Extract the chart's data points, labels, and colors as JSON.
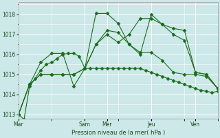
{
  "bg_color": "#cce8e8",
  "grid_color": "#ffffff",
  "line_color": "#1a6e1a",
  "marker_color": "#1a6e1a",
  "xlabel": "Pression niveau de la mer( hPa )",
  "ylim": [
    1012.8,
    1018.6
  ],
  "yticks": [
    1013,
    1014,
    1015,
    1016,
    1017,
    1018
  ],
  "x_day_labels": [
    "Mar",
    "Sam",
    "Mer",
    "Jeu",
    "Ven"
  ],
  "x_day_positions": [
    0,
    48,
    64,
    96,
    128
  ],
  "xlim": [
    0,
    144
  ],
  "vline_positions": [
    0,
    48,
    64,
    96,
    128
  ],
  "series": [
    {
      "x": [
        0,
        4,
        8,
        12,
        16,
        20,
        24,
        28,
        32,
        36,
        40,
        44,
        48,
        52,
        56,
        60,
        64,
        68,
        72,
        76,
        80,
        84,
        88,
        92,
        96,
        100,
        104,
        108,
        112,
        116,
        120,
        124,
        128,
        132,
        136,
        140,
        144
      ],
      "y": [
        1013.0,
        1012.75,
        1014.4,
        1014.8,
        1015.2,
        1015.5,
        1015.6,
        1015.8,
        1016.0,
        1016.05,
        1016.05,
        1015.9,
        1015.3,
        1015.3,
        1015.3,
        1015.3,
        1015.3,
        1015.3,
        1015.3,
        1015.3,
        1015.3,
        1015.3,
        1015.3,
        1015.2,
        1015.1,
        1015.0,
        1014.9,
        1014.8,
        1014.7,
        1014.6,
        1014.5,
        1014.4,
        1014.3,
        1014.2,
        1014.15,
        1014.1,
        1014.15
      ]
    },
    {
      "x": [
        0,
        8,
        16,
        24,
        32,
        40,
        48,
        56,
        64,
        72,
        80,
        88,
        96,
        104,
        112,
        120,
        128,
        136,
        144
      ],
      "y": [
        1013.0,
        1014.5,
        1015.6,
        1016.05,
        1016.05,
        1014.4,
        1015.3,
        1018.05,
        1018.05,
        1017.55,
        1016.5,
        1016.0,
        1018.0,
        1017.5,
        1017.0,
        1016.7,
        1015.1,
        1015.0,
        1014.3
      ]
    },
    {
      "x": [
        0,
        8,
        16,
        24,
        32,
        40,
        48,
        56,
        64,
        72,
        80,
        88,
        96,
        104,
        112,
        120,
        128,
        136,
        144
      ],
      "y": [
        1013.0,
        1014.5,
        1015.0,
        1015.0,
        1015.0,
        1015.0,
        1015.3,
        1016.5,
        1017.0,
        1016.6,
        1017.0,
        1017.8,
        1017.8,
        1017.5,
        1017.3,
        1017.2,
        1015.1,
        1015.0,
        1014.3
      ]
    },
    {
      "x": [
        0,
        8,
        16,
        24,
        32,
        40,
        48,
        56,
        64,
        72,
        80,
        88,
        96,
        104,
        112,
        120,
        128,
        136,
        144
      ],
      "y": [
        1013.0,
        1014.5,
        1015.0,
        1015.0,
        1015.0,
        1015.0,
        1015.3,
        1016.5,
        1017.2,
        1017.1,
        1016.5,
        1016.1,
        1016.1,
        1015.7,
        1015.1,
        1015.0,
        1015.0,
        1014.9,
        1014.3
      ]
    }
  ]
}
